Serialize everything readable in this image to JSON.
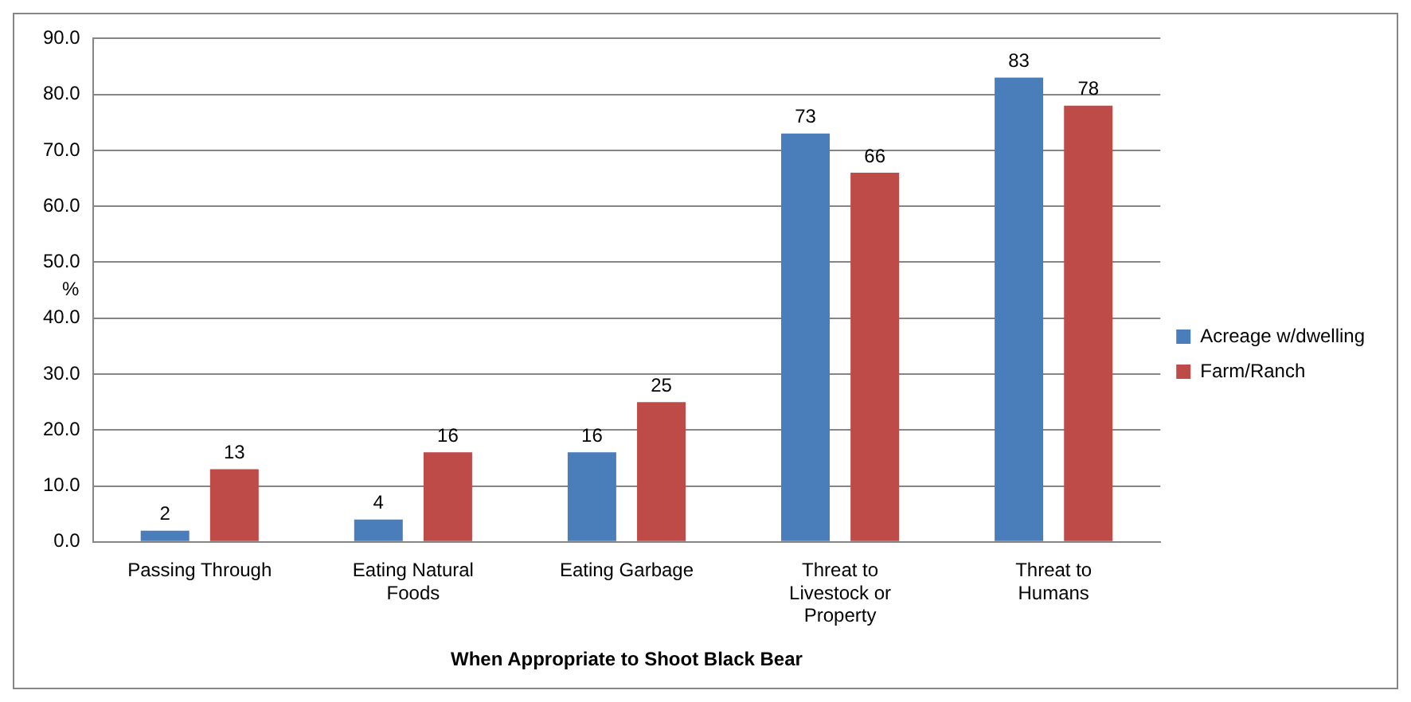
{
  "chart_data": {
    "type": "bar",
    "xlabel": "When Appropriate to Shoot Black Bear",
    "ylabel": "%",
    "categories": [
      "Passing Through",
      "Eating Natural Foods",
      "Eating Garbage",
      "Threat to Livestock or Property",
      "Threat to Humans"
    ],
    "series": [
      {
        "name": "Acreage w/dwelling",
        "color": "#4a7ebb",
        "values": [
          2,
          4,
          16,
          73,
          83
        ]
      },
      {
        "name": "Farm/Ranch",
        "color": "#be4b48",
        "values": [
          13,
          16,
          25,
          66,
          78
        ]
      }
    ],
    "ylim": [
      0,
      90
    ],
    "yticks": [
      {
        "value": 0,
        "label": "0.0"
      },
      {
        "value": 10,
        "label": "10.0"
      },
      {
        "value": 20,
        "label": "20.0"
      },
      {
        "value": 30,
        "label": "30.0"
      },
      {
        "value": 40,
        "label": "40.0"
      },
      {
        "value": 50,
        "label": "50.0"
      },
      {
        "value": 60,
        "label": "60.0"
      },
      {
        "value": 70,
        "label": "70.0"
      },
      {
        "value": 80,
        "label": "80.0"
      },
      {
        "value": 90,
        "label": "90.0"
      }
    ],
    "grid": "y",
    "legend": "right",
    "data_labels": true
  }
}
